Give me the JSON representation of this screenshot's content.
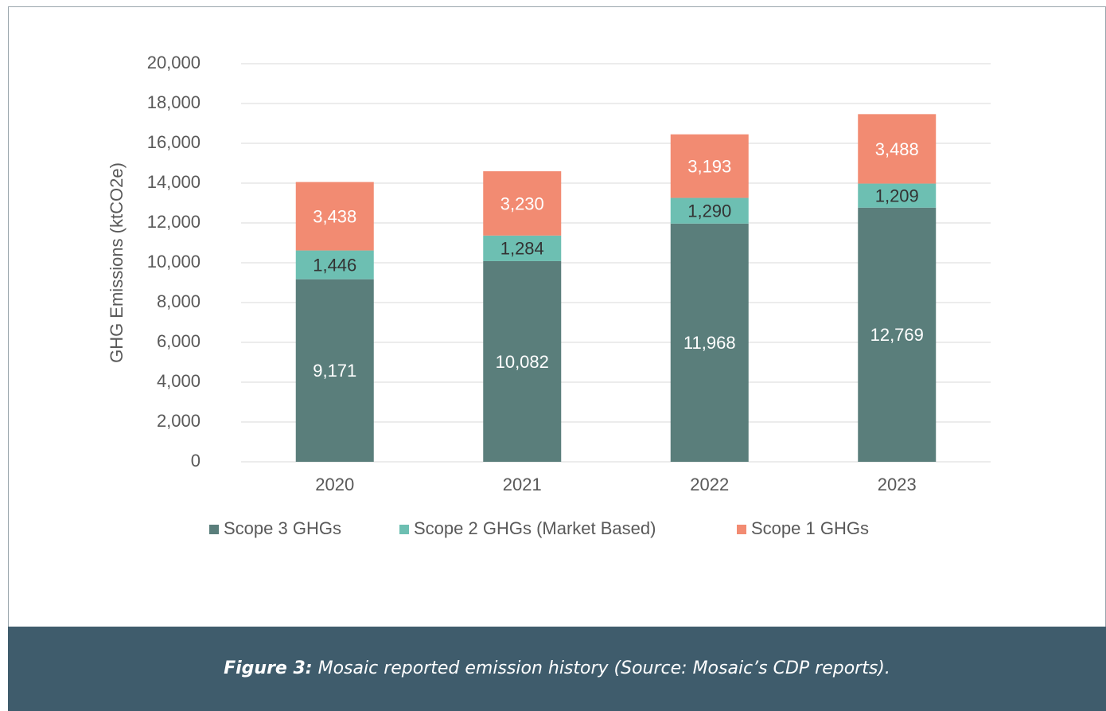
{
  "chart_data": {
    "type": "stacked_bar",
    "ylabel": "GHG Emissions (ktCO2e)",
    "categories": [
      "2020",
      "2021",
      "2022",
      "2023"
    ],
    "series": [
      {
        "name": "Scope 3 GHGs",
        "color": "#5a7e7b",
        "label_color": "#ffffff",
        "values": [
          9171,
          10082,
          11968,
          12769
        ],
        "value_labels": [
          "9,171",
          "10,082",
          "11,968",
          "12,769"
        ]
      },
      {
        "name": "Scope 2 GHGs (Market Based)",
        "color": "#6dbfb2",
        "label_color": "#333333",
        "values": [
          1446,
          1284,
          1290,
          1209
        ],
        "value_labels": [
          "1,446",
          "1,284",
          "1,290",
          "1,209"
        ]
      },
      {
        "name": "Scope 1 GHGs",
        "color": "#f28b72",
        "label_color": "#ffffff",
        "values": [
          3438,
          3230,
          3193,
          3488
        ],
        "value_labels": [
          "3,438",
          "3,230",
          "3,193",
          "3,488"
        ]
      }
    ],
    "ylim": [
      0,
      20000
    ],
    "yticks": [
      0,
      {
        "value": 2000,
        "label": "2,000"
      },
      {
        "value": 4000,
        "label": "4,000"
      },
      {
        "value": 6000,
        "label": "6,000"
      },
      {
        "value": 8000,
        "label": "8,000"
      },
      {
        "value": 10000,
        "label": "10,000"
      },
      {
        "value": 12000,
        "label": "12,000"
      },
      {
        "value": 14000,
        "label": "14,000"
      },
      {
        "value": 16000,
        "label": "16,000"
      },
      {
        "value": 18000,
        "label": "18,000"
      },
      {
        "value": 20000,
        "label": "20,000"
      }
    ],
    "grid": true,
    "legend": "bottom"
  },
  "caption": {
    "label": "Figure 3:",
    "text": "Mosaic reported emission history (Source: Mosaic’s CDP reports)."
  }
}
